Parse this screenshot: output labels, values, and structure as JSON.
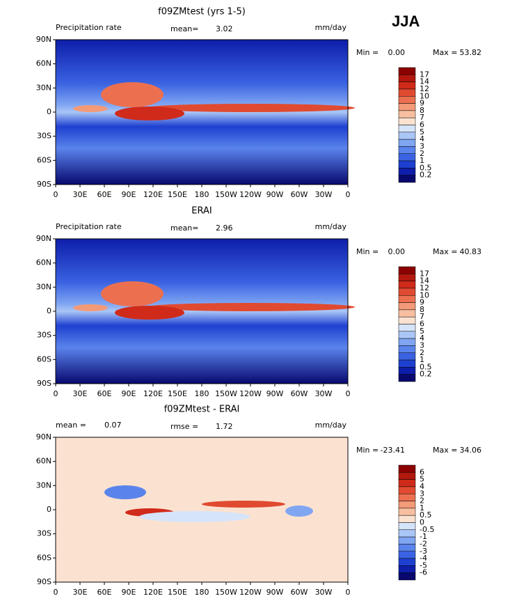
{
  "season": "JJA",
  "lat_ticks": [
    "90N",
    "60N",
    "30N",
    "0",
    "30S",
    "60S",
    "90S"
  ],
  "lon_ticks": [
    "0",
    "30E",
    "60E",
    "90E",
    "120E",
    "150E",
    "180",
    "150W",
    "120W",
    "90W",
    "60W",
    "30W",
    "0"
  ],
  "panels": [
    {
      "title": "f09ZMtest (yrs 1-5)",
      "left": [
        "Precipitation rate"
      ],
      "center": [
        "mean=",
        "3.02"
      ],
      "right": "mm/day",
      "side": [
        "Min =",
        "0.00",
        "Max =",
        "53.82"
      ],
      "colorbar": {
        "levels": [
          17,
          14,
          12,
          10,
          9,
          8,
          7,
          6,
          5,
          4,
          3,
          2,
          1,
          0.5,
          0.2
        ],
        "colors": [
          "#8b0000",
          "#b2180e",
          "#d02a1a",
          "#e04a30",
          "#ec7050",
          "#f39a78",
          "#f7bea0",
          "#fbe2d0",
          "#d6e4fa",
          "#aac6f6",
          "#80a6f2",
          "#5a84ec",
          "#3a62e2",
          "#1e40d0",
          "#0e1eaa",
          "#08086e"
        ]
      }
    },
    {
      "title": "ERAI",
      "left": [
        "Precipitation rate"
      ],
      "center": [
        "mean=",
        "2.96"
      ],
      "right": "mm/day",
      "side": [
        "Min =",
        "0.00",
        "Max =",
        "40.83"
      ],
      "colorbar": {
        "levels": [
          17,
          14,
          12,
          10,
          9,
          8,
          7,
          6,
          5,
          4,
          3,
          2,
          1,
          0.5,
          0.2
        ],
        "colors": [
          "#8b0000",
          "#b2180e",
          "#d02a1a",
          "#e04a30",
          "#ec7050",
          "#f39a78",
          "#f7bea0",
          "#fbe2d0",
          "#d6e4fa",
          "#aac6f6",
          "#80a6f2",
          "#5a84ec",
          "#3a62e2",
          "#1e40d0",
          "#0e1eaa",
          "#08086e"
        ]
      }
    },
    {
      "title": "f09ZMtest - ERAI",
      "left": [
        "mean =",
        "0.07"
      ],
      "center": [
        "rmse =",
        "1.72"
      ],
      "right": "mm/day",
      "side": [
        "Min =",
        "-23.41",
        "Max =",
        "34.06"
      ],
      "colorbar": {
        "levels": [
          6,
          5,
          4,
          3,
          2,
          1,
          0.5,
          0,
          -0.5,
          -1,
          -2,
          -3,
          -4,
          -5,
          -6
        ],
        "colors": [
          "#8b0000",
          "#b2180e",
          "#d02a1a",
          "#e04a30",
          "#ec7050",
          "#f39a78",
          "#f7bea0",
          "#fbe2d0",
          "#d6e4fa",
          "#aac6f6",
          "#80a6f2",
          "#5a84ec",
          "#3a62e2",
          "#1e40d0",
          "#0e1eaa",
          "#08086e"
        ]
      }
    }
  ]
}
